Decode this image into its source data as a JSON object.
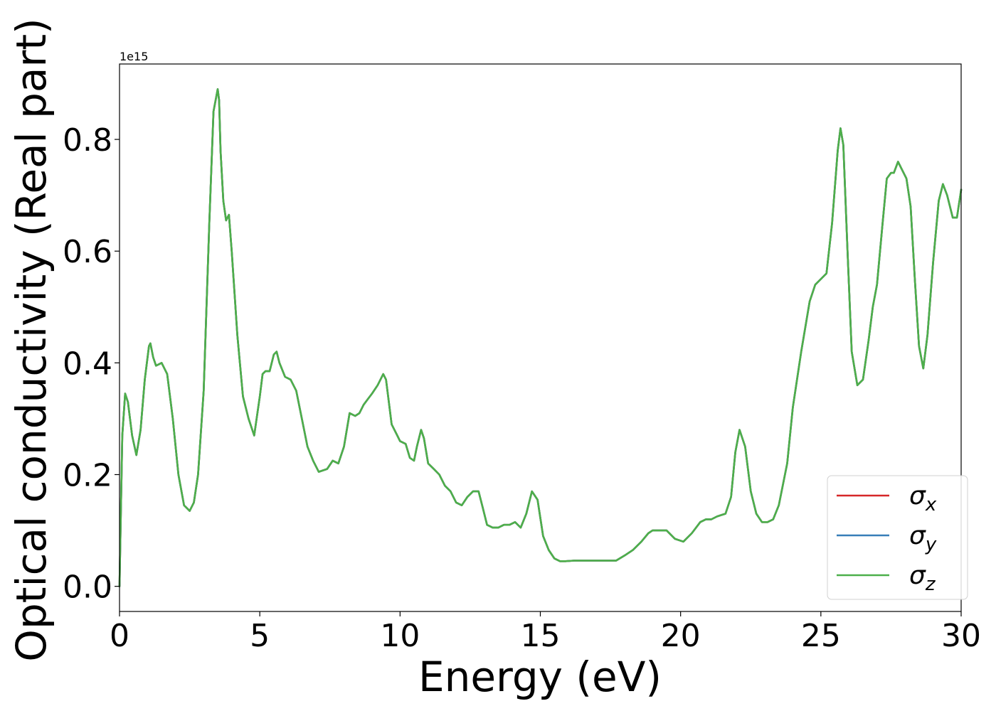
{
  "chart_data": {
    "type": "line",
    "xlabel": "Energy (eV)",
    "ylabel": "Optical conductivity (Real part)",
    "offset_text": "1e15",
    "y_multiplier": 1000000000000000.0,
    "xlim": [
      0,
      30
    ],
    "ylim": [
      -0.045,
      0.935
    ],
    "xticks": [
      0,
      5,
      10,
      15,
      20,
      25,
      30
    ],
    "xtick_labels": [
      "0",
      "5",
      "10",
      "15",
      "20",
      "25",
      "30"
    ],
    "yticks": [
      0.0,
      0.2,
      0.4,
      0.6,
      0.8
    ],
    "ytick_labels": [
      "0.0",
      "0.2",
      "0.4",
      "0.6",
      "0.8"
    ],
    "grid": false,
    "legend_position": "bottom-right",
    "series": [
      {
        "name": "σx",
        "base": "σ",
        "sub": "x",
        "color": "#d62728",
        "x": [
          0,
          0.05,
          0.1,
          0.2,
          0.3,
          0.45,
          0.6,
          0.75,
          0.9,
          1.05,
          1.1,
          1.2,
          1.3,
          1.5,
          1.7,
          1.9,
          2.1,
          2.3,
          2.5,
          2.65,
          2.8,
          3.0,
          3.2,
          3.35,
          3.5,
          3.55,
          3.6,
          3.7,
          3.8,
          3.9,
          4.0,
          4.2,
          4.4,
          4.6,
          4.8,
          5.0,
          5.1,
          5.2,
          5.35,
          5.5,
          5.6,
          5.7,
          5.9,
          6.1,
          6.3,
          6.5,
          6.7,
          6.9,
          7.1,
          7.4,
          7.6,
          7.8,
          8.0,
          8.2,
          8.4,
          8.55,
          8.7,
          8.85,
          9.0,
          9.2,
          9.4,
          9.5,
          9.7,
          9.9,
          10.0,
          10.2,
          10.35,
          10.5,
          10.6,
          10.75,
          10.85,
          11.0,
          11.2,
          11.4,
          11.6,
          11.8,
          12.0,
          12.2,
          12.4,
          12.6,
          12.8,
          12.95,
          13.1,
          13.3,
          13.5,
          13.7,
          13.9,
          14.1,
          14.3,
          14.5,
          14.7,
          14.9,
          15.1,
          15.3,
          15.5,
          15.7,
          15.9,
          16.2,
          16.5,
          16.8,
          17.1,
          17.4,
          17.7,
          18.0,
          18.3,
          18.6,
          18.85,
          19.0,
          19.25,
          19.5,
          19.8,
          20.1,
          20.4,
          20.7,
          20.9,
          21.1,
          21.3,
          21.6,
          21.8,
          21.95,
          22.1,
          22.3,
          22.5,
          22.7,
          22.9,
          23.1,
          23.3,
          23.5,
          23.8,
          24.0,
          24.3,
          24.6,
          24.8,
          25.0,
          25.2,
          25.4,
          25.6,
          25.7,
          25.8,
          25.95,
          26.1,
          26.3,
          26.5,
          26.7,
          26.85,
          27.0,
          27.2,
          27.35,
          27.5,
          27.6,
          27.75,
          27.9,
          28.05,
          28.2,
          28.35,
          28.5,
          28.65,
          28.8,
          29.0,
          29.2,
          29.35,
          29.5,
          29.7,
          29.85,
          30.0
        ],
        "y": [
          0.0,
          0.14,
          0.27,
          0.345,
          0.33,
          0.27,
          0.235,
          0.28,
          0.37,
          0.43,
          0.435,
          0.41,
          0.395,
          0.4,
          0.38,
          0.3,
          0.2,
          0.145,
          0.135,
          0.15,
          0.2,
          0.35,
          0.65,
          0.85,
          0.89,
          0.87,
          0.78,
          0.69,
          0.655,
          0.665,
          0.6,
          0.45,
          0.34,
          0.3,
          0.27,
          0.34,
          0.38,
          0.385,
          0.385,
          0.415,
          0.42,
          0.4,
          0.375,
          0.37,
          0.35,
          0.3,
          0.25,
          0.225,
          0.205,
          0.21,
          0.225,
          0.22,
          0.25,
          0.31,
          0.305,
          0.31,
          0.325,
          0.335,
          0.345,
          0.36,
          0.38,
          0.37,
          0.29,
          0.27,
          0.26,
          0.255,
          0.23,
          0.225,
          0.25,
          0.28,
          0.265,
          0.22,
          0.21,
          0.2,
          0.18,
          0.17,
          0.15,
          0.145,
          0.16,
          0.17,
          0.17,
          0.14,
          0.11,
          0.105,
          0.105,
          0.11,
          0.11,
          0.115,
          0.105,
          0.13,
          0.17,
          0.155,
          0.09,
          0.065,
          0.05,
          0.045,
          0.045,
          0.046,
          0.046,
          0.046,
          0.046,
          0.046,
          0.046,
          0.055,
          0.065,
          0.08,
          0.095,
          0.1,
          0.1,
          0.1,
          0.085,
          0.08,
          0.095,
          0.115,
          0.12,
          0.12,
          0.125,
          0.13,
          0.16,
          0.24,
          0.28,
          0.25,
          0.17,
          0.13,
          0.115,
          0.115,
          0.12,
          0.145,
          0.22,
          0.32,
          0.42,
          0.51,
          0.54,
          0.55,
          0.56,
          0.65,
          0.78,
          0.82,
          0.79,
          0.6,
          0.42,
          0.36,
          0.37,
          0.44,
          0.5,
          0.54,
          0.65,
          0.73,
          0.74,
          0.74,
          0.76,
          0.745,
          0.73,
          0.68,
          0.55,
          0.43,
          0.39,
          0.45,
          0.58,
          0.69,
          0.72,
          0.7,
          0.66,
          0.66,
          0.71
        ]
      },
      {
        "name": "σy",
        "base": "σ",
        "sub": "y",
        "color": "#377eb8",
        "x": [
          0,
          0.05,
          0.1,
          0.2,
          0.3,
          0.45,
          0.6,
          0.75,
          0.9,
          1.05,
          1.1,
          1.2,
          1.3,
          1.5,
          1.7,
          1.9,
          2.1,
          2.3,
          2.5,
          2.65,
          2.8,
          3.0,
          3.2,
          3.35,
          3.5,
          3.55,
          3.6,
          3.7,
          3.8,
          3.9,
          4.0,
          4.2,
          4.4,
          4.6,
          4.8,
          5.0,
          5.1,
          5.2,
          5.35,
          5.5,
          5.6,
          5.7,
          5.9,
          6.1,
          6.3,
          6.5,
          6.7,
          6.9,
          7.1,
          7.4,
          7.6,
          7.8,
          8.0,
          8.2,
          8.4,
          8.55,
          8.7,
          8.85,
          9.0,
          9.2,
          9.4,
          9.5,
          9.7,
          9.9,
          10.0,
          10.2,
          10.35,
          10.5,
          10.6,
          10.75,
          10.85,
          11.0,
          11.2,
          11.4,
          11.6,
          11.8,
          12.0,
          12.2,
          12.4,
          12.6,
          12.8,
          12.95,
          13.1,
          13.3,
          13.5,
          13.7,
          13.9,
          14.1,
          14.3,
          14.5,
          14.7,
          14.9,
          15.1,
          15.3,
          15.5,
          15.7,
          15.9,
          16.2,
          16.5,
          16.8,
          17.1,
          17.4,
          17.7,
          18.0,
          18.3,
          18.6,
          18.85,
          19.0,
          19.25,
          19.5,
          19.8,
          20.1,
          20.4,
          20.7,
          20.9,
          21.1,
          21.3,
          21.6,
          21.8,
          21.95,
          22.1,
          22.3,
          22.5,
          22.7,
          22.9,
          23.1,
          23.3,
          23.5,
          23.8,
          24.0,
          24.3,
          24.6,
          24.8,
          25.0,
          25.2,
          25.4,
          25.6,
          25.7,
          25.8,
          25.95,
          26.1,
          26.3,
          26.5,
          26.7,
          26.85,
          27.0,
          27.2,
          27.35,
          27.5,
          27.6,
          27.75,
          27.9,
          28.05,
          28.2,
          28.35,
          28.5,
          28.65,
          28.8,
          29.0,
          29.2,
          29.35,
          29.5,
          29.7,
          29.85,
          30.0
        ],
        "y": [
          0.0,
          0.14,
          0.27,
          0.345,
          0.33,
          0.27,
          0.235,
          0.28,
          0.37,
          0.43,
          0.435,
          0.41,
          0.395,
          0.4,
          0.38,
          0.3,
          0.2,
          0.145,
          0.135,
          0.15,
          0.2,
          0.35,
          0.65,
          0.85,
          0.89,
          0.87,
          0.78,
          0.69,
          0.655,
          0.665,
          0.6,
          0.45,
          0.34,
          0.3,
          0.27,
          0.34,
          0.38,
          0.385,
          0.385,
          0.415,
          0.42,
          0.4,
          0.375,
          0.37,
          0.35,
          0.3,
          0.25,
          0.225,
          0.205,
          0.21,
          0.225,
          0.22,
          0.25,
          0.31,
          0.305,
          0.31,
          0.325,
          0.335,
          0.345,
          0.36,
          0.38,
          0.37,
          0.29,
          0.27,
          0.26,
          0.255,
          0.23,
          0.225,
          0.25,
          0.28,
          0.265,
          0.22,
          0.21,
          0.2,
          0.18,
          0.17,
          0.15,
          0.145,
          0.16,
          0.17,
          0.17,
          0.14,
          0.11,
          0.105,
          0.105,
          0.11,
          0.11,
          0.115,
          0.105,
          0.13,
          0.17,
          0.155,
          0.09,
          0.065,
          0.05,
          0.045,
          0.045,
          0.046,
          0.046,
          0.046,
          0.046,
          0.046,
          0.046,
          0.055,
          0.065,
          0.08,
          0.095,
          0.1,
          0.1,
          0.1,
          0.085,
          0.08,
          0.095,
          0.115,
          0.12,
          0.12,
          0.125,
          0.13,
          0.16,
          0.24,
          0.28,
          0.25,
          0.17,
          0.13,
          0.115,
          0.115,
          0.12,
          0.145,
          0.22,
          0.32,
          0.42,
          0.51,
          0.54,
          0.55,
          0.56,
          0.65,
          0.78,
          0.82,
          0.79,
          0.6,
          0.42,
          0.36,
          0.37,
          0.44,
          0.5,
          0.54,
          0.65,
          0.73,
          0.74,
          0.74,
          0.76,
          0.745,
          0.73,
          0.68,
          0.55,
          0.43,
          0.39,
          0.45,
          0.58,
          0.69,
          0.72,
          0.7,
          0.66,
          0.66,
          0.71
        ]
      },
      {
        "name": "σz",
        "base": "σ",
        "sub": "z",
        "color": "#4daf4a",
        "x": [
          0,
          0.05,
          0.1,
          0.2,
          0.3,
          0.45,
          0.6,
          0.75,
          0.9,
          1.05,
          1.1,
          1.2,
          1.3,
          1.5,
          1.7,
          1.9,
          2.1,
          2.3,
          2.5,
          2.65,
          2.8,
          3.0,
          3.2,
          3.35,
          3.5,
          3.55,
          3.6,
          3.7,
          3.8,
          3.9,
          4.0,
          4.2,
          4.4,
          4.6,
          4.8,
          5.0,
          5.1,
          5.2,
          5.35,
          5.5,
          5.6,
          5.7,
          5.9,
          6.1,
          6.3,
          6.5,
          6.7,
          6.9,
          7.1,
          7.4,
          7.6,
          7.8,
          8.0,
          8.2,
          8.4,
          8.55,
          8.7,
          8.85,
          9.0,
          9.2,
          9.4,
          9.5,
          9.7,
          9.9,
          10.0,
          10.2,
          10.35,
          10.5,
          10.6,
          10.75,
          10.85,
          11.0,
          11.2,
          11.4,
          11.6,
          11.8,
          12.0,
          12.2,
          12.4,
          12.6,
          12.8,
          12.95,
          13.1,
          13.3,
          13.5,
          13.7,
          13.9,
          14.1,
          14.3,
          14.5,
          14.7,
          14.9,
          15.1,
          15.3,
          15.5,
          15.7,
          15.9,
          16.2,
          16.5,
          16.8,
          17.1,
          17.4,
          17.7,
          18.0,
          18.3,
          18.6,
          18.85,
          19.0,
          19.25,
          19.5,
          19.8,
          20.1,
          20.4,
          20.7,
          20.9,
          21.1,
          21.3,
          21.6,
          21.8,
          21.95,
          22.1,
          22.3,
          22.5,
          22.7,
          22.9,
          23.1,
          23.3,
          23.5,
          23.8,
          24.0,
          24.3,
          24.6,
          24.8,
          25.0,
          25.2,
          25.4,
          25.6,
          25.7,
          25.8,
          25.95,
          26.1,
          26.3,
          26.5,
          26.7,
          26.85,
          27.0,
          27.2,
          27.35,
          27.5,
          27.6,
          27.75,
          27.9,
          28.05,
          28.2,
          28.35,
          28.5,
          28.65,
          28.8,
          29.0,
          29.2,
          29.35,
          29.5,
          29.7,
          29.85,
          30.0
        ],
        "y": [
          0.0,
          0.14,
          0.27,
          0.345,
          0.33,
          0.27,
          0.235,
          0.28,
          0.37,
          0.43,
          0.435,
          0.41,
          0.395,
          0.4,
          0.38,
          0.3,
          0.2,
          0.145,
          0.135,
          0.15,
          0.2,
          0.35,
          0.65,
          0.85,
          0.89,
          0.87,
          0.78,
          0.69,
          0.655,
          0.665,
          0.6,
          0.45,
          0.34,
          0.3,
          0.27,
          0.34,
          0.38,
          0.385,
          0.385,
          0.415,
          0.42,
          0.4,
          0.375,
          0.37,
          0.35,
          0.3,
          0.25,
          0.225,
          0.205,
          0.21,
          0.225,
          0.22,
          0.25,
          0.31,
          0.305,
          0.31,
          0.325,
          0.335,
          0.345,
          0.36,
          0.38,
          0.37,
          0.29,
          0.27,
          0.26,
          0.255,
          0.23,
          0.225,
          0.25,
          0.28,
          0.265,
          0.22,
          0.21,
          0.2,
          0.18,
          0.17,
          0.15,
          0.145,
          0.16,
          0.17,
          0.17,
          0.14,
          0.11,
          0.105,
          0.105,
          0.11,
          0.11,
          0.115,
          0.105,
          0.13,
          0.17,
          0.155,
          0.09,
          0.065,
          0.05,
          0.045,
          0.045,
          0.046,
          0.046,
          0.046,
          0.046,
          0.046,
          0.046,
          0.055,
          0.065,
          0.08,
          0.095,
          0.1,
          0.1,
          0.1,
          0.085,
          0.08,
          0.095,
          0.115,
          0.12,
          0.12,
          0.125,
          0.13,
          0.16,
          0.24,
          0.28,
          0.25,
          0.17,
          0.13,
          0.115,
          0.115,
          0.12,
          0.145,
          0.22,
          0.32,
          0.42,
          0.51,
          0.54,
          0.55,
          0.56,
          0.65,
          0.78,
          0.82,
          0.79,
          0.6,
          0.42,
          0.36,
          0.37,
          0.44,
          0.5,
          0.54,
          0.65,
          0.73,
          0.74,
          0.74,
          0.76,
          0.745,
          0.73,
          0.68,
          0.55,
          0.43,
          0.39,
          0.45,
          0.58,
          0.69,
          0.72,
          0.7,
          0.66,
          0.66,
          0.71
        ]
      }
    ]
  }
}
